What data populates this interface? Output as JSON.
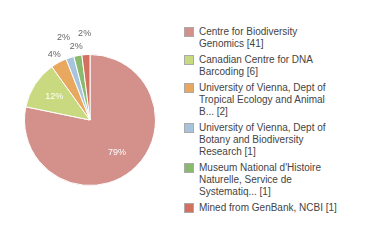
{
  "chart_data": {
    "type": "pie",
    "categories": [
      "Centre for Biodiversity\nGenomics [41]",
      "Canadian Centre for DNA\nBarcoding [6]",
      "University of Vienna, Dept of\nTropical Ecology and Animal\nB... [2]",
      "University of Vienna, Dept of\nBotany and Biodiversity\nResearch [1]",
      "Museum National d'Histoire\nNaturelle, Service de\nSystematiq... [1]",
      "Mined from GenBank, NCBI [1]"
    ],
    "values": [
      79,
      12,
      4,
      2,
      2,
      2
    ],
    "value_labels": [
      "79%",
      "12%",
      "4%",
      "2%",
      "2%",
      "2%"
    ],
    "colors": [
      "#d4908a",
      "#c8d980",
      "#e8a860",
      "#a8c4dc",
      "#8aba6e",
      "#d47060"
    ],
    "data_labels": true,
    "legend": "right"
  }
}
